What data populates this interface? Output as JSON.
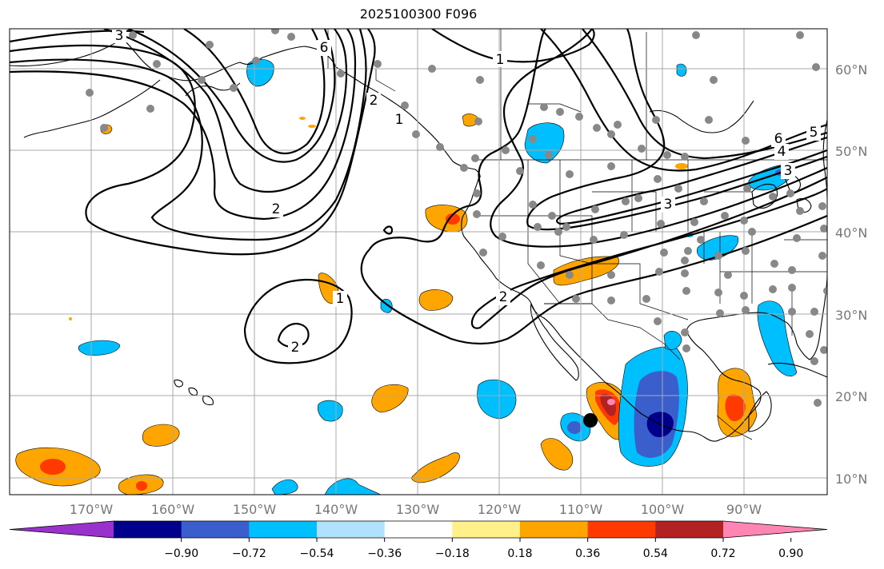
{
  "title": "2025100300 F096",
  "lat_labels": [
    "60°N",
    "50°N",
    "40°N",
    "30°N",
    "20°N",
    "10°N"
  ],
  "lon_labels": [
    "170°W",
    "160°W",
    "150°W",
    "140°W",
    "130°W",
    "120°W",
    "110°W",
    "100°W",
    "90°W"
  ],
  "colorbar": {
    "ticks": [
      "−0.90",
      "−0.72",
      "−0.54",
      "−0.36",
      "−0.18",
      "0.18",
      "0.36",
      "0.54",
      "0.72",
      "0.90"
    ],
    "colors": [
      "#9932cc",
      "#00008b",
      "#3a5fcd",
      "#00bfff",
      "#b0e2ff",
      "#ffffff",
      "#fff08a",
      "#ffa500",
      "#ff3a00",
      "#b22222",
      "#ff85b3"
    ]
  },
  "contour_labels": [
    "1",
    "2",
    "2",
    "2",
    "3",
    "6",
    "6",
    "5",
    "4",
    "3",
    "1",
    "3",
    "2",
    "1"
  ],
  "legend_colors": {
    "contour": "#000000",
    "station": "#888888",
    "marker": "#000000"
  }
}
